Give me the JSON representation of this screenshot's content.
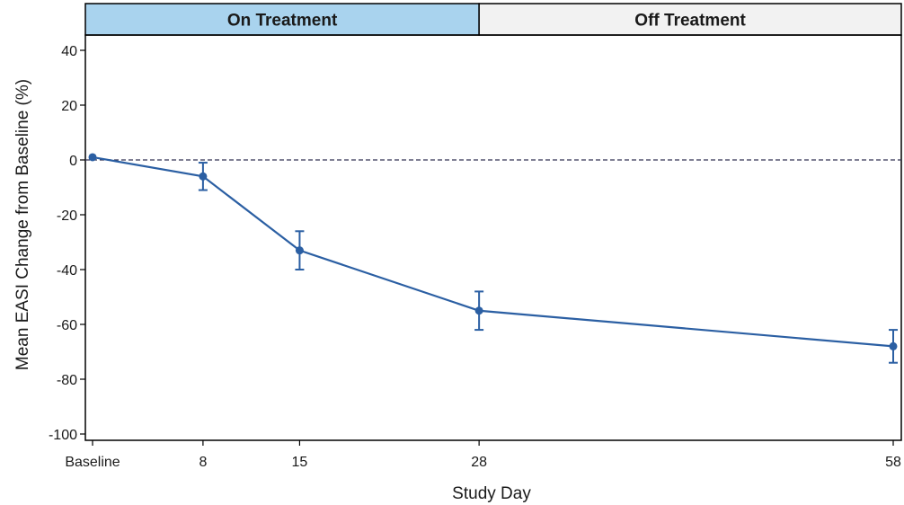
{
  "chart_data": {
    "type": "line",
    "xlabel": "Study Day",
    "ylabel": "Mean EASI Change from Baseline (%)",
    "ylim": [
      -100,
      40
    ],
    "yticks": [
      40,
      20,
      0,
      -20,
      -40,
      -60,
      -80,
      -100
    ],
    "x": [
      0,
      8,
      15,
      28,
      58
    ],
    "x_tick_labels": [
      "Baseline",
      "8",
      "15",
      "28",
      "58"
    ],
    "series": [
      {
        "values": [
          1,
          -6,
          -33,
          -55,
          -68
        ],
        "error_low": [
          1,
          -11,
          -40,
          -62,
          -74
        ],
        "error_high": [
          1,
          -1,
          -26,
          -48,
          -62
        ],
        "color": "#2b5fa3"
      }
    ],
    "reference_line": {
      "y": 0,
      "style": "dashed",
      "color": "#333355"
    },
    "panels": [
      {
        "label": "On Treatment",
        "x_from": 0,
        "x_to": 28,
        "color": "#a9d3ee"
      },
      {
        "label": "Off Treatment",
        "x_from": 28,
        "x_to": 58,
        "color": "#f2f2f2"
      }
    ],
    "grid": false
  }
}
